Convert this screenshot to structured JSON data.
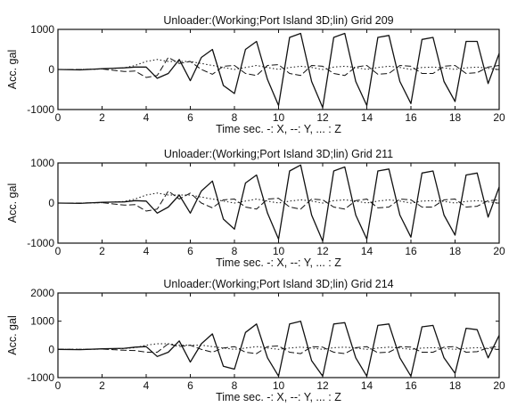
{
  "chart_data": [
    {
      "type": "line",
      "title": "Unloader:(Working;Port Island 3D;lin)   Grid 209",
      "xlabel": "Time  sec.  -: X, --: Y, ... : Z",
      "ylabel": "Acc. gal",
      "xlim": [
        0,
        20
      ],
      "ylim": [
        -1000,
        1000
      ],
      "xticks": [
        "0",
        "2",
        "4",
        "6",
        "8",
        "10",
        "12",
        "14",
        "16",
        "18",
        "20"
      ],
      "yticks": [
        "-1000",
        "0",
        "1000"
      ],
      "x": [
        0,
        1,
        2,
        3,
        3.5,
        4,
        4.5,
        5,
        5.5,
        6,
        6.5,
        7,
        7.5,
        8,
        8.5,
        9,
        9.5,
        10,
        10.5,
        11,
        11.5,
        12,
        12.5,
        13,
        13.5,
        14,
        14.5,
        15,
        15.5,
        16,
        16.5,
        17,
        17.5,
        18,
        18.5,
        19,
        19.5,
        20
      ],
      "series": [
        {
          "name": "X",
          "style": "solid",
          "values": [
            0,
            -10,
            20,
            40,
            60,
            60,
            -220,
            -100,
            250,
            -280,
            300,
            500,
            -400,
            -600,
            500,
            700,
            -250,
            -900,
            800,
            900,
            -300,
            -950,
            800,
            900,
            -300,
            -900,
            800,
            850,
            -300,
            -850,
            750,
            800,
            -300,
            -800,
            700,
            700,
            -350,
            400
          ]
        },
        {
          "name": "Y",
          "style": "dashed",
          "values": [
            0,
            0,
            10,
            -50,
            -40,
            -200,
            -150,
            300,
            150,
            200,
            0,
            -120,
            80,
            100,
            -100,
            -150,
            100,
            120,
            -100,
            -150,
            100,
            80,
            -100,
            -150,
            60,
            100,
            -120,
            -100,
            100,
            80,
            -100,
            -100,
            80,
            100,
            -100,
            -80,
            60,
            100
          ]
        },
        {
          "name": "Z",
          "style": "dotted",
          "values": [
            0,
            0,
            10,
            40,
            100,
            200,
            250,
            200,
            200,
            200,
            150,
            100,
            50,
            0,
            50,
            100,
            50,
            0,
            50,
            80,
            50,
            0,
            60,
            80,
            50,
            0,
            50,
            80,
            50,
            0,
            50,
            60,
            40,
            0,
            40,
            60,
            30,
            0
          ]
        }
      ]
    },
    {
      "type": "line",
      "title": "Unloader:(Working;Port Island 3D;lin)   Grid 211",
      "xlabel": "Time  sec.  -: X, --: Y, ... : Z",
      "ylabel": "Acc. gal",
      "xlim": [
        0,
        20
      ],
      "ylim": [
        -1000,
        1000
      ],
      "xticks": [
        "0",
        "2",
        "4",
        "6",
        "8",
        "10",
        "12",
        "14",
        "16",
        "18",
        "20"
      ],
      "yticks": [
        "-1000",
        "0",
        "1000"
      ],
      "x": [
        0,
        1,
        2,
        3,
        3.5,
        4,
        4.5,
        5,
        5.5,
        6,
        6.5,
        7,
        7.5,
        8,
        8.5,
        9,
        9.5,
        10,
        10.5,
        11,
        11.5,
        12,
        12.5,
        13,
        13.5,
        14,
        14.5,
        15,
        15.5,
        16,
        16.5,
        17,
        17.5,
        18,
        18.5,
        19,
        19.5,
        20
      ],
      "series": [
        {
          "name": "X",
          "style": "solid",
          "values": [
            0,
            -10,
            20,
            30,
            60,
            50,
            -250,
            -100,
            200,
            -250,
            300,
            550,
            -400,
            -650,
            500,
            700,
            -250,
            -900,
            800,
            950,
            -300,
            -950,
            800,
            900,
            -300,
            -900,
            800,
            850,
            -300,
            -850,
            750,
            800,
            -300,
            -800,
            700,
            750,
            -350,
            400
          ]
        },
        {
          "name": "Y",
          "style": "dashed",
          "values": [
            0,
            0,
            10,
            -50,
            -40,
            -200,
            -150,
            300,
            100,
            250,
            0,
            -120,
            80,
            100,
            -100,
            -150,
            100,
            120,
            -100,
            -150,
            100,
            80,
            -100,
            -150,
            60,
            100,
            -120,
            -100,
            100,
            80,
            -100,
            -100,
            80,
            100,
            -100,
            -80,
            60,
            80
          ]
        },
        {
          "name": "Z",
          "style": "dotted",
          "values": [
            0,
            0,
            10,
            40,
            100,
            200,
            250,
            200,
            200,
            200,
            150,
            100,
            50,
            0,
            50,
            100,
            50,
            0,
            50,
            80,
            50,
            0,
            60,
            80,
            50,
            0,
            50,
            80,
            50,
            0,
            50,
            60,
            40,
            0,
            40,
            60,
            30,
            0
          ]
        }
      ]
    },
    {
      "type": "line",
      "title": "Unloader:(Working;Port Island 3D;lin)   Grid 214",
      "xlabel": "Time  sec.  -: X, --: Y, ... : Z",
      "ylabel": "Acc. gal",
      "xlim": [
        0,
        20
      ],
      "ylim": [
        -1000,
        2000
      ],
      "xticks": [
        "0",
        "2",
        "4",
        "6",
        "8",
        "10",
        "12",
        "14",
        "16",
        "18",
        "20"
      ],
      "yticks": [
        "-1000",
        "0",
        "1000",
        "2000"
      ],
      "x": [
        0,
        1,
        2,
        3,
        3.5,
        4,
        4.5,
        5,
        5.5,
        6,
        6.5,
        7,
        7.5,
        8,
        8.5,
        9,
        9.5,
        10,
        10.5,
        11,
        11.5,
        12,
        12.5,
        13,
        13.5,
        14,
        14.5,
        15,
        15.5,
        16,
        16.5,
        17,
        17.5,
        18,
        18.5,
        19,
        19.5,
        20
      ],
      "series": [
        {
          "name": "X",
          "style": "solid",
          "values": [
            0,
            -10,
            20,
            40,
            80,
            100,
            -250,
            -100,
            300,
            -450,
            200,
            550,
            -600,
            -700,
            600,
            900,
            -300,
            -950,
            900,
            1000,
            -400,
            -950,
            900,
            950,
            -300,
            -950,
            850,
            900,
            -300,
            -950,
            800,
            850,
            -300,
            -850,
            750,
            700,
            -300,
            500
          ]
        },
        {
          "name": "Y",
          "style": "dashed",
          "values": [
            0,
            0,
            10,
            -30,
            -40,
            -100,
            -100,
            200,
            100,
            150,
            0,
            -100,
            50,
            100,
            -100,
            -150,
            100,
            120,
            -100,
            -150,
            100,
            80,
            -100,
            -150,
            60,
            100,
            -120,
            -100,
            100,
            80,
            -100,
            -100,
            80,
            100,
            -100,
            -80,
            60,
            100
          ]
        },
        {
          "name": "Z",
          "style": "dotted",
          "values": [
            0,
            0,
            10,
            30,
            60,
            150,
            200,
            200,
            150,
            150,
            150,
            100,
            50,
            0,
            50,
            100,
            50,
            0,
            50,
            80,
            50,
            0,
            60,
            80,
            50,
            0,
            50,
            80,
            50,
            0,
            50,
            60,
            40,
            0,
            40,
            60,
            30,
            0
          ]
        }
      ]
    }
  ]
}
